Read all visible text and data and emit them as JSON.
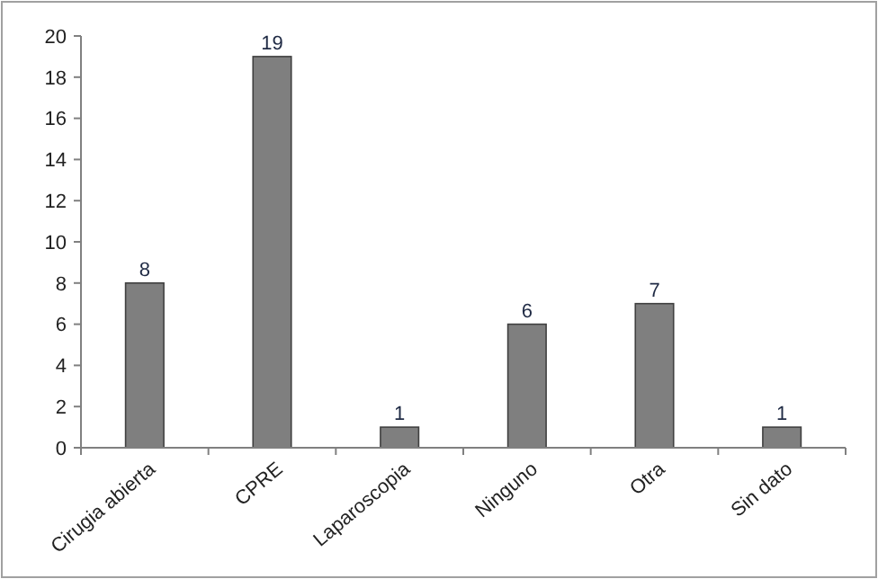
{
  "chart_data": {
    "type": "bar",
    "categories": [
      "Cirugia abierta",
      "CPRE",
      "Laparoscopia",
      "Ninguno",
      "Otra",
      "Sin dato"
    ],
    "values": [
      8,
      19,
      1,
      6,
      7,
      1
    ],
    "color": "#7f7f7f",
    "ylim": [
      0,
      20
    ],
    "yticks": [
      0,
      2,
      4,
      6,
      8,
      10,
      12,
      14,
      16,
      18,
      20
    ],
    "data_labels": true,
    "grid": false
  }
}
